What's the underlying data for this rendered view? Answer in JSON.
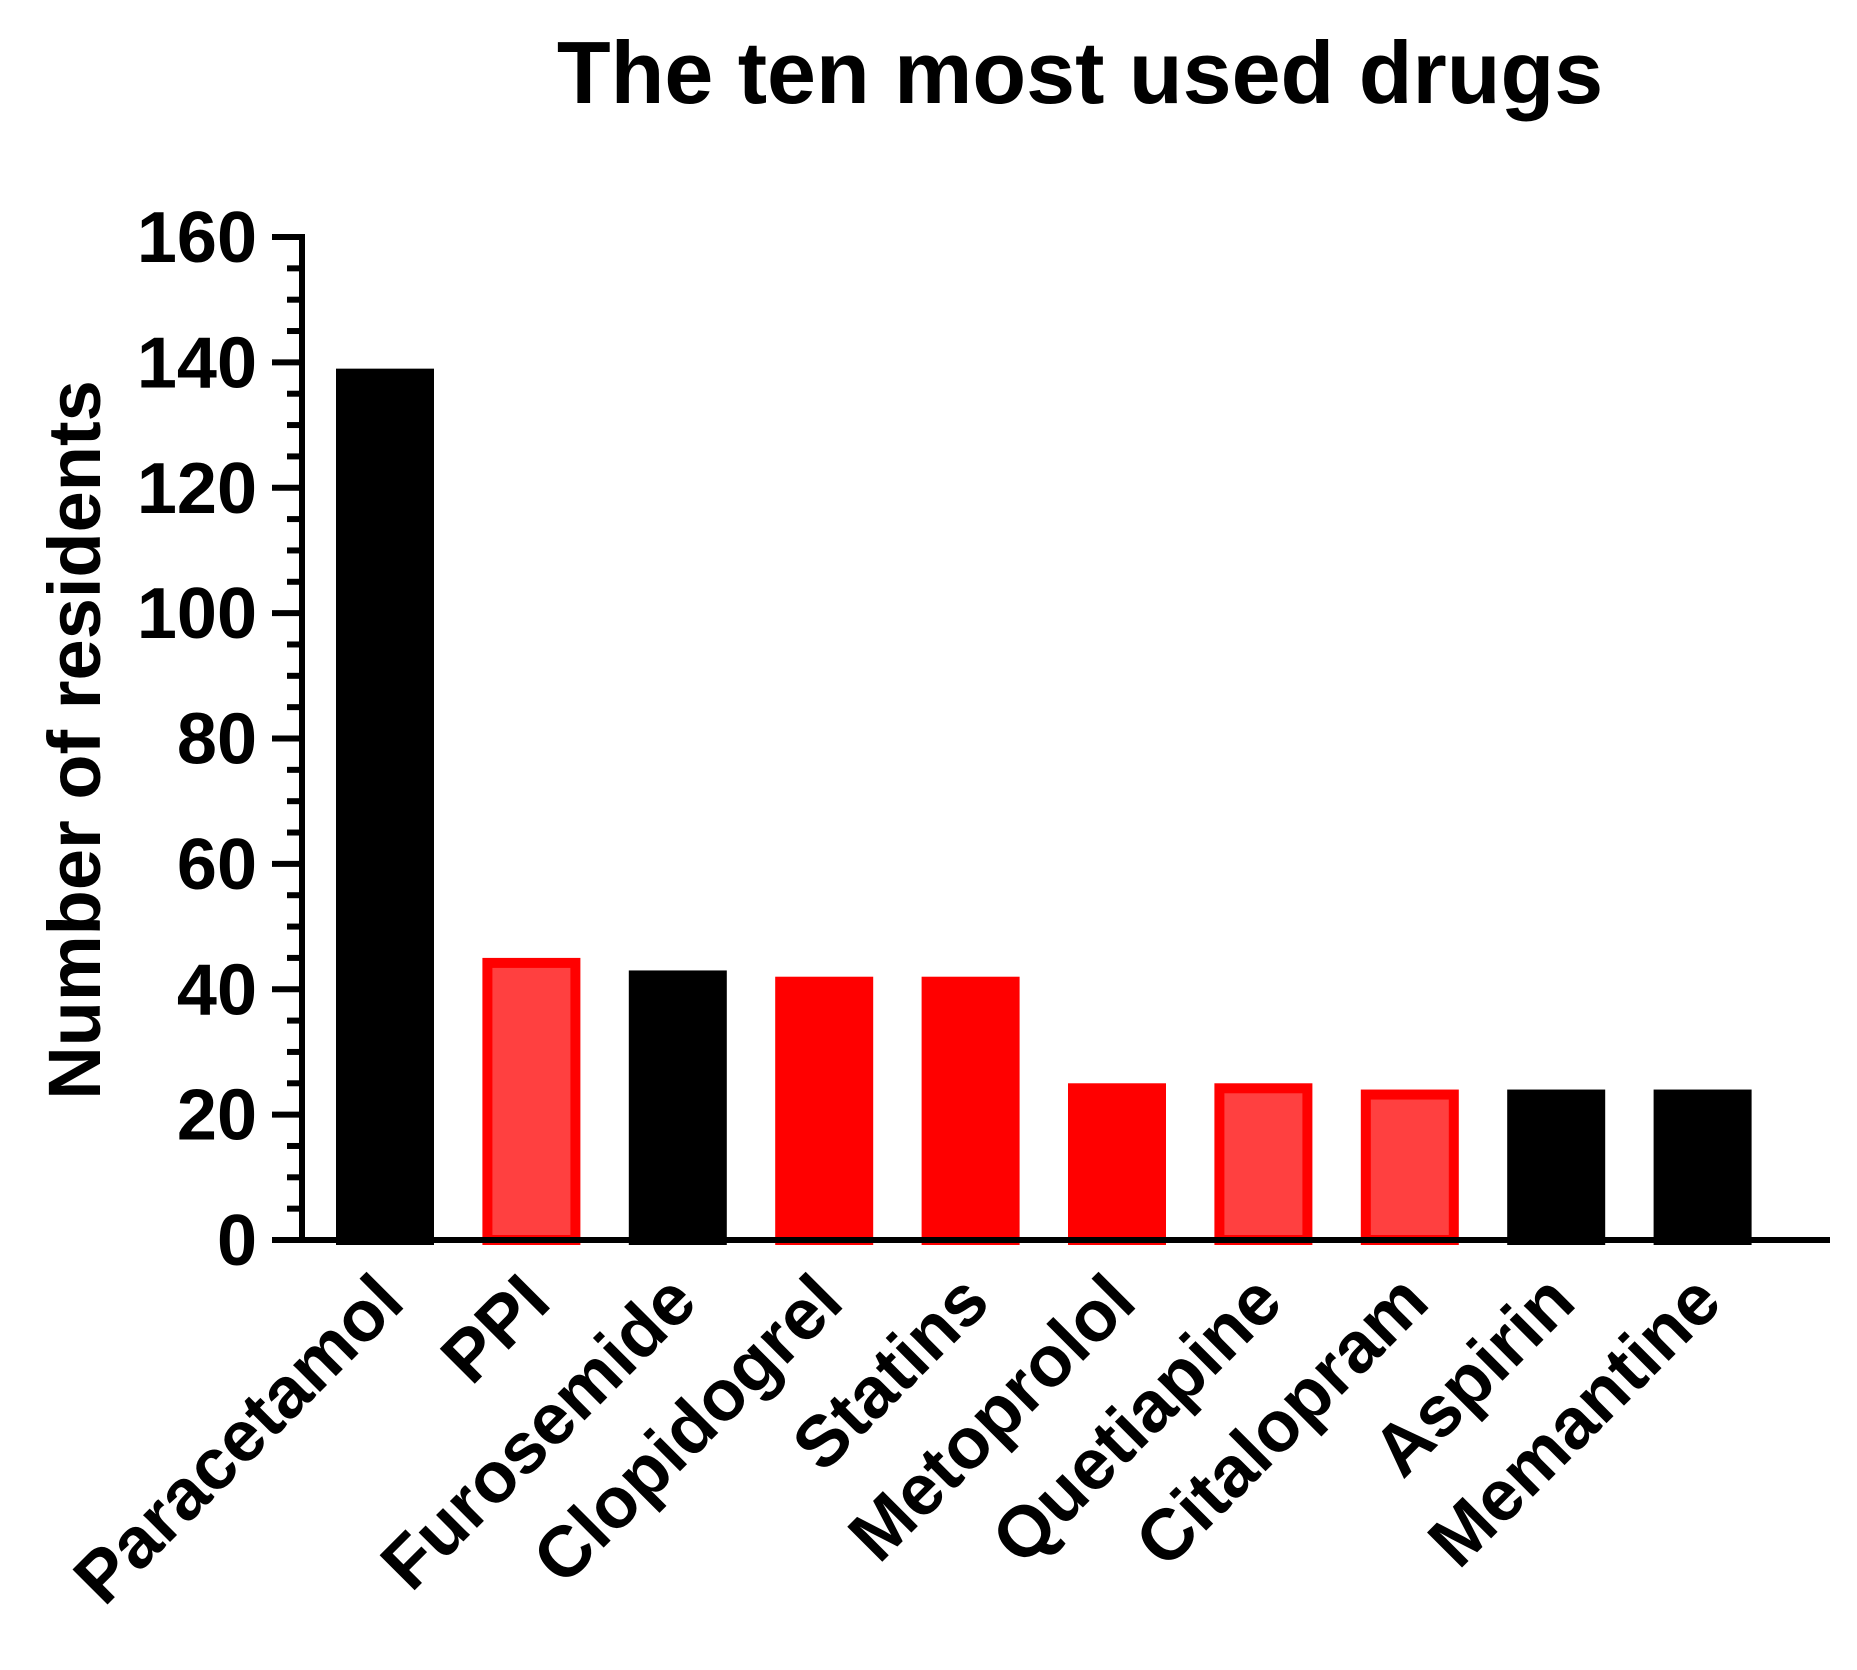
{
  "chart_data": {
    "type": "bar",
    "title": "The ten most used drugs",
    "xlabel": "",
    "ylabel": "Number of residents",
    "ylim": [
      0,
      160
    ],
    "yticks": [
      "0",
      "20",
      "40",
      "60",
      "80",
      "100",
      "120",
      "140",
      "160"
    ],
    "ytick_values": [
      0,
      20,
      40,
      60,
      80,
      100,
      120,
      140,
      160
    ],
    "minor_tick_step": 5,
    "grid": false,
    "categories": [
      "Paracetamol",
      "PPI",
      "Furosemide",
      "Clopidogrel",
      "Statins",
      "Metoprolol",
      "Quetiapine",
      "Citalopram",
      "Aspirin",
      "Memantine"
    ],
    "values": [
      139,
      45,
      43,
      42,
      42,
      25,
      25,
      24,
      24,
      24
    ],
    "bar_colors": [
      "#000000",
      "#ff4040",
      "#000000",
      "#ff0000",
      "#ff0000",
      "#ff0000",
      "#ff4040",
      "#ff4040",
      "#000000",
      "#000000"
    ],
    "bar_outline_colors": [
      "#000000",
      "#ff0000",
      "#000000",
      "#ff0000",
      "#ff0000",
      "#ff0000",
      "#ff0000",
      "#ff0000",
      "#000000",
      "#000000"
    ],
    "x_tick_label_rotation_deg": -45
  }
}
